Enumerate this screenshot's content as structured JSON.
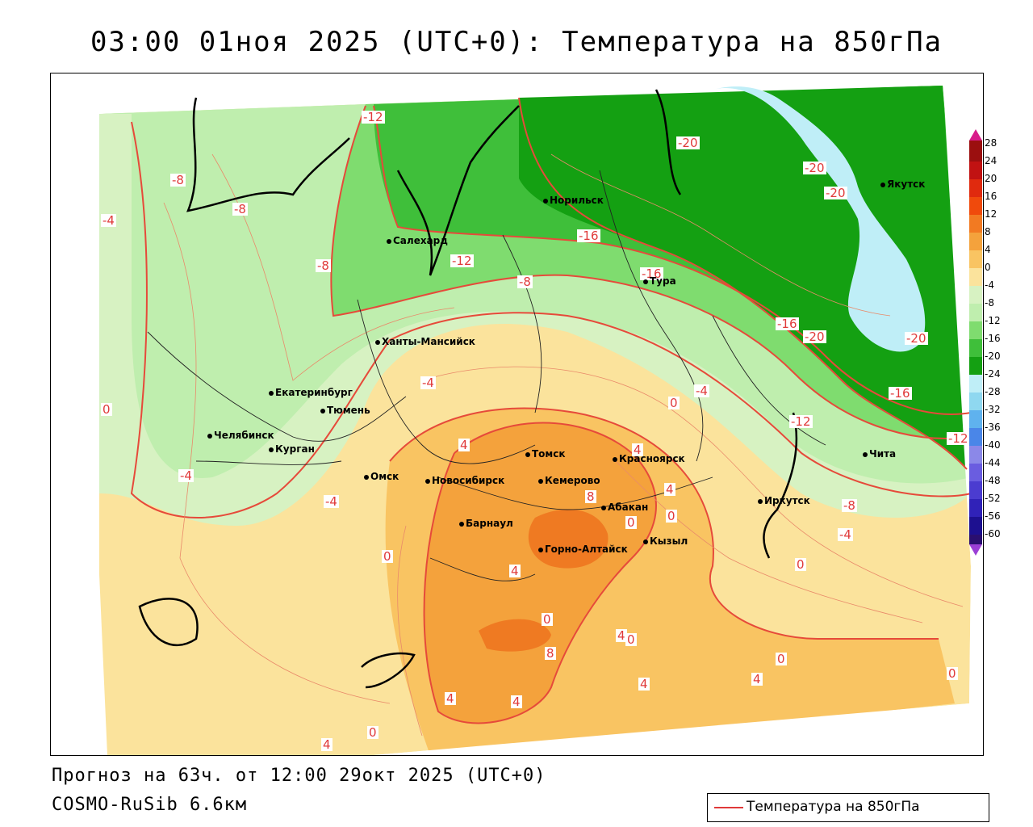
{
  "header": {
    "title": "03:00 01ноя 2025 (UTC+0): Температура на 850гПа"
  },
  "footer": {
    "forecast": "Прогноз на 63ч. от 12:00 29окт 2025 (UTC+0)",
    "model": "COSMO-RuSib 6.6км"
  },
  "legend": {
    "label": "Температура на 850гПа",
    "line_color": "#e03a3a"
  },
  "colorbar": {
    "ticks": [
      "28",
      "24",
      "20",
      "16",
      "12",
      "8",
      "4",
      "0",
      "-4",
      "-8",
      "-12",
      "-16",
      "-20",
      "-24",
      "-28",
      "-32",
      "-36",
      "-40",
      "-44",
      "-48",
      "-52",
      "-56",
      "-60"
    ]
  },
  "cities": [
    {
      "name": "Норильск"
    },
    {
      "name": "Якутск"
    },
    {
      "name": "Салехард"
    },
    {
      "name": "Тура"
    },
    {
      "name": "Ханты-Мансийск"
    },
    {
      "name": "Екатеринбург"
    },
    {
      "name": "Тюмень"
    },
    {
      "name": "Челябинск"
    },
    {
      "name": "Курган"
    },
    {
      "name": "Омск"
    },
    {
      "name": "Томск"
    },
    {
      "name": "Красноярск"
    },
    {
      "name": "Новосибирск"
    },
    {
      "name": "Кемерово"
    },
    {
      "name": "Абакан"
    },
    {
      "name": "Барнаул"
    },
    {
      "name": "Иркутск"
    },
    {
      "name": "Горно-Алтайск"
    },
    {
      "name": "Кызыл"
    },
    {
      "name": "Чита"
    }
  ],
  "contour_labels": [
    "-12",
    "-20",
    "-20",
    "-20",
    "-8",
    "-8",
    "-4",
    "-16",
    "-12",
    "-8",
    "-16",
    "-16",
    "-20",
    "-20",
    "-8",
    "-4",
    "-4",
    "-16",
    "0",
    "-12",
    "0",
    "4",
    "-4",
    "-4",
    "4",
    "8",
    "4",
    "0",
    "-8",
    "0",
    "-4",
    "-12",
    "0",
    "4",
    "0",
    "4",
    "8",
    "0",
    "0",
    "4",
    "0",
    "0",
    "4",
    "4",
    "4",
    "0",
    "4"
  ]
}
